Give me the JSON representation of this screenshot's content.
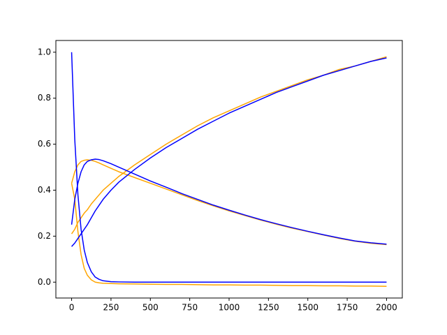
{
  "chart_data": {
    "type": "line",
    "x": [
      0,
      20,
      40,
      60,
      80,
      100,
      125,
      150,
      175,
      200,
      250,
      300,
      400,
      500,
      600,
      700,
      800,
      900,
      1000,
      1100,
      1200,
      1300,
      1400,
      1500,
      1600,
      1700,
      1800,
      1900,
      2000
    ],
    "series": [
      {
        "color": "orange",
        "values": [
          0.43,
          0.36,
          0.22,
          0.12,
          0.06,
          0.03,
          0.01,
          0.0,
          -0.003,
          -0.005,
          -0.006,
          -0.007,
          -0.008,
          -0.009,
          -0.01,
          -0.01,
          -0.011,
          -0.012,
          -0.012,
          -0.013,
          -0.013,
          -0.014,
          -0.015,
          -0.015,
          -0.016,
          -0.016,
          -0.017,
          -0.017,
          -0.018
        ]
      },
      {
        "color": "orange",
        "values": [
          0.43,
          0.48,
          0.51,
          0.525,
          0.53,
          0.532,
          0.53,
          0.525,
          0.518,
          0.51,
          0.495,
          0.48,
          0.455,
          0.43,
          0.405,
          0.38,
          0.355,
          0.332,
          0.31,
          0.29,
          0.27,
          0.252,
          0.235,
          0.22,
          0.205,
          0.19,
          0.178,
          0.169,
          0.163
        ]
      },
      {
        "color": "orange",
        "values": [
          0.21,
          0.23,
          0.26,
          0.28,
          0.3,
          0.315,
          0.34,
          0.36,
          0.38,
          0.4,
          0.43,
          0.46,
          0.51,
          0.555,
          0.6,
          0.64,
          0.68,
          0.715,
          0.745,
          0.775,
          0.805,
          0.83,
          0.855,
          0.88,
          0.9,
          0.925,
          0.94,
          0.96,
          0.98
        ]
      },
      {
        "color": "blue",
        "values": [
          1.0,
          0.62,
          0.38,
          0.23,
          0.14,
          0.085,
          0.045,
          0.022,
          0.012,
          0.006,
          0.002,
          0.001,
          0.0,
          0.0,
          0.0,
          0.0,
          0.0,
          0.0,
          0.0,
          0.0,
          0.0,
          0.0,
          0.0,
          0.0,
          0.0,
          0.0,
          0.0,
          0.0,
          0.0
        ]
      },
      {
        "color": "blue",
        "values": [
          0.25,
          0.36,
          0.43,
          0.48,
          0.51,
          0.525,
          0.532,
          0.535,
          0.533,
          0.528,
          0.515,
          0.5,
          0.47,
          0.44,
          0.413,
          0.385,
          0.36,
          0.335,
          0.313,
          0.292,
          0.272,
          0.254,
          0.237,
          0.221,
          0.206,
          0.192,
          0.179,
          0.171,
          0.165
        ]
      },
      {
        "color": "blue",
        "values": [
          0.155,
          0.17,
          0.19,
          0.21,
          0.23,
          0.25,
          0.28,
          0.31,
          0.335,
          0.36,
          0.4,
          0.435,
          0.49,
          0.54,
          0.585,
          0.625,
          0.665,
          0.7,
          0.735,
          0.765,
          0.795,
          0.825,
          0.85,
          0.875,
          0.9,
          0.92,
          0.94,
          0.96,
          0.975
        ]
      }
    ],
    "xlim": [
      -100,
      2100
    ],
    "ylim": [
      -0.069,
      1.051
    ],
    "xticks": [
      0,
      250,
      500,
      750,
      1000,
      1250,
      1500,
      1750,
      2000
    ],
    "yticks": [
      {
        "value": 0,
        "label": "0.0"
      },
      0.2,
      0.4,
      0.6,
      0.8,
      {
        "value": 1,
        "label": "1.0"
      }
    ]
  }
}
